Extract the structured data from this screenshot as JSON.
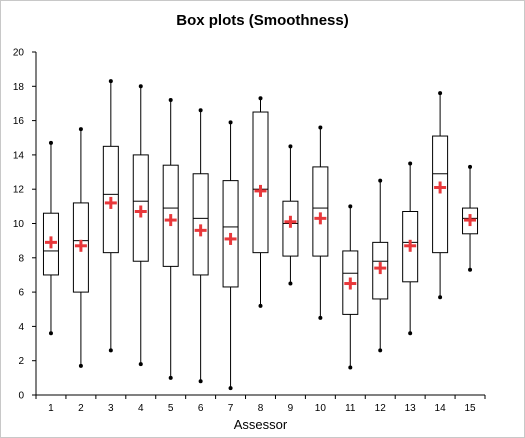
{
  "chart_data": {
    "type": "boxplot",
    "title": "Box plots (Smoothness)",
    "xlabel": "Assessor",
    "ylabel": "",
    "ylim": [
      0,
      20
    ],
    "yticks": [
      0,
      2,
      4,
      6,
      8,
      10,
      12,
      14,
      16,
      18,
      20
    ],
    "categories": [
      "1",
      "2",
      "3",
      "4",
      "5",
      "6",
      "7",
      "8",
      "9",
      "10",
      "11",
      "12",
      "13",
      "14",
      "15"
    ],
    "boxes": [
      {
        "category": "1",
        "min": 3.6,
        "q1": 7.0,
        "median": 8.4,
        "q3": 10.6,
        "max": 14.7,
        "mean": 8.9
      },
      {
        "category": "2",
        "min": 1.7,
        "q1": 6.0,
        "median": 9.0,
        "q3": 11.2,
        "max": 15.5,
        "mean": 8.7
      },
      {
        "category": "3",
        "min": 2.6,
        "q1": 8.3,
        "median": 11.7,
        "q3": 14.5,
        "max": 18.3,
        "mean": 11.2
      },
      {
        "category": "4",
        "min": 1.8,
        "q1": 7.8,
        "median": 11.3,
        "q3": 14.0,
        "max": 18.0,
        "mean": 10.7
      },
      {
        "category": "5",
        "min": 1.0,
        "q1": 7.5,
        "median": 10.9,
        "q3": 13.4,
        "max": 17.2,
        "mean": 10.2
      },
      {
        "category": "6",
        "min": 0.8,
        "q1": 7.0,
        "median": 10.3,
        "q3": 12.9,
        "max": 16.6,
        "mean": 9.6
      },
      {
        "category": "7",
        "min": 0.4,
        "q1": 6.3,
        "median": 9.8,
        "q3": 12.5,
        "max": 15.9,
        "mean": 9.1
      },
      {
        "category": "8",
        "min": 5.2,
        "q1": 8.3,
        "median": 12.0,
        "q3": 16.5,
        "max": 17.3,
        "mean": 11.9
      },
      {
        "category": "9",
        "min": 6.5,
        "q1": 8.1,
        "median": 10.0,
        "q3": 11.3,
        "max": 14.5,
        "mean": 10.1
      },
      {
        "category": "10",
        "min": 4.5,
        "q1": 8.1,
        "median": 10.9,
        "q3": 13.3,
        "max": 15.6,
        "mean": 10.3
      },
      {
        "category": "11",
        "min": 1.6,
        "q1": 4.7,
        "median": 7.1,
        "q3": 8.4,
        "max": 11.0,
        "mean": 6.5
      },
      {
        "category": "12",
        "min": 2.6,
        "q1": 5.6,
        "median": 7.8,
        "q3": 8.9,
        "max": 12.5,
        "mean": 7.4
      },
      {
        "category": "13",
        "min": 3.6,
        "q1": 6.6,
        "median": 8.9,
        "q3": 10.7,
        "max": 13.5,
        "mean": 8.7
      },
      {
        "category": "14",
        "min": 5.7,
        "q1": 8.3,
        "median": 12.9,
        "q3": 15.1,
        "max": 17.6,
        "mean": 12.1
      },
      {
        "category": "15",
        "min": 7.3,
        "q1": 9.4,
        "median": 10.3,
        "q3": 10.9,
        "max": 13.3,
        "mean": 10.2
      }
    ],
    "grid": false,
    "legend": "none",
    "colors": {
      "box_stroke": "#000000",
      "mean_marker": "#e8383b"
    }
  }
}
